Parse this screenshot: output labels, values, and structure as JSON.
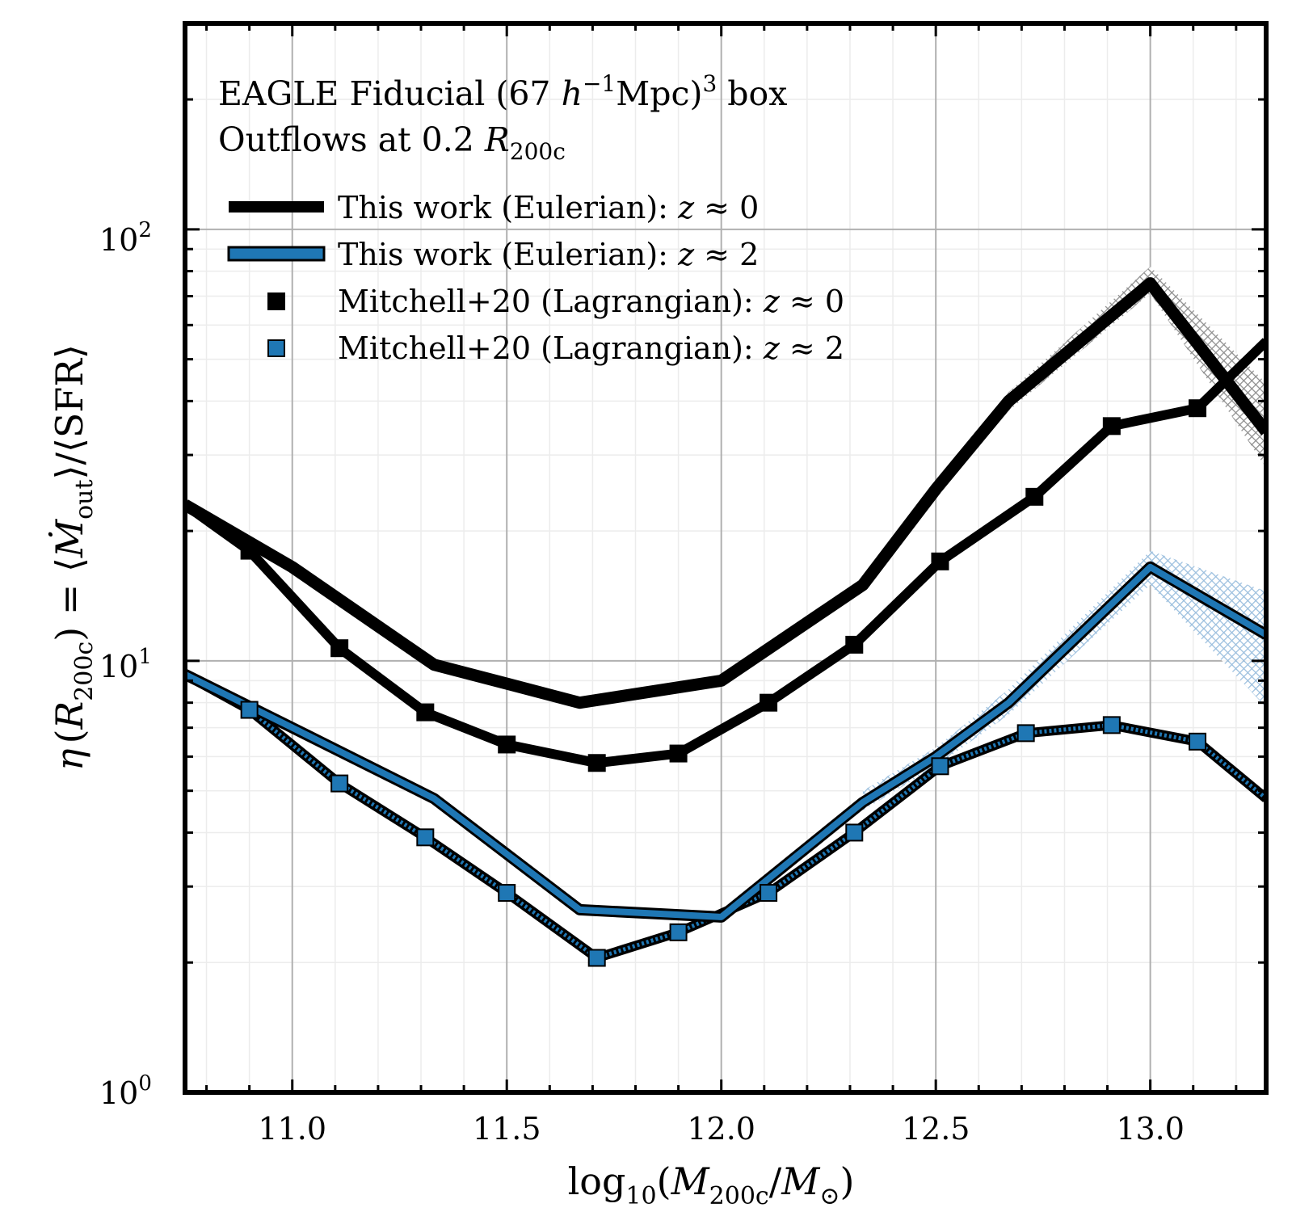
{
  "chart_data": {
    "type": "line",
    "yscale": "log",
    "xlim": [
      10.75,
      13.27
    ],
    "ylim": [
      1,
      300
    ],
    "grid": true,
    "xlabel": {
      "pre": "log",
      "sub1": "10",
      "paren_open": "(",
      "M1": "M",
      "sub2": "200c",
      "slash": "/",
      "M2": "M",
      "sub3": "⊙",
      "paren_close": ")"
    },
    "ylabel": {
      "eta": "η",
      "paren_open": "(",
      "R": "R",
      "sub": "200c",
      "mid": ") = ⟨",
      "Mdot": "Ṁ",
      "sub2": "out",
      "tail": "⟩/⟨SFR⟩"
    },
    "xticks": [
      "11.0",
      "11.5",
      "12.0",
      "12.5",
      "13.0"
    ],
    "yticks": [
      {
        "base": "10",
        "exp": "0"
      },
      {
        "base": "10",
        "exp": "1"
      },
      {
        "base": "10",
        "exp": "2"
      }
    ],
    "annotation": {
      "line1_a": "EAGLE Fiducial (67 ",
      "line1_h": "h",
      "line1_exp": "−1",
      "line1_b": "Mpc)",
      "line1_cube": "3",
      "line1_c": " box",
      "line2_a": "Outflows at 0.2 ",
      "line2_R": "R",
      "line2_sub": "200c"
    },
    "legend": [
      {
        "label": "This work (Eulerian): ",
        "z": "z",
        "rel": " ≈ 0",
        "style": "thick-black-line"
      },
      {
        "label": "This work (Eulerian): ",
        "z": "z",
        "rel": " ≈ 2",
        "style": "blue-line"
      },
      {
        "label": "Mitchell+20 (Lagrangian): ",
        "z": "z",
        "rel": " ≈ 0",
        "style": "black-square"
      },
      {
        "label": "Mitchell+20 (Lagrangian): ",
        "z": "z",
        "rel": " ≈ 2",
        "style": "blue-square"
      }
    ],
    "series": [
      {
        "name": "This work (Eulerian): z≈0",
        "color": "#000000",
        "x": [
          10.75,
          11.0,
          11.33,
          11.67,
          12.0,
          12.33,
          12.5,
          12.67,
          13.0,
          13.27
        ],
        "y": [
          23.0,
          16.5,
          9.8,
          8.0,
          9.0,
          15.0,
          25.0,
          40.0,
          75.0,
          34.0
        ],
        "band": {
          "x": [
            12.5,
            12.67,
            13.0,
            13.27
          ],
          "lower": [
            24.0,
            38.0,
            71.0,
            28.0
          ],
          "upper": [
            26.0,
            42.0,
            82.0,
            44.0
          ],
          "color": "#808080"
        }
      },
      {
        "name": "This work (Eulerian): z≈2",
        "color": "#1f77b4",
        "x": [
          10.75,
          11.0,
          11.33,
          11.67,
          12.0,
          12.33,
          12.5,
          12.67,
          13.0,
          13.27
        ],
        "y": [
          9.3,
          7.0,
          4.8,
          2.65,
          2.55,
          4.7,
          6.0,
          8.0,
          16.5,
          11.5
        ],
        "band": {
          "x": [
            12.33,
            12.5,
            12.67,
            13.0,
            13.27
          ],
          "lower": [
            4.5,
            5.7,
            7.5,
            15.0,
            7.8
          ],
          "upper": [
            5.0,
            6.3,
            8.6,
            18.0,
            14.5
          ],
          "color": "#1f77b4"
        }
      },
      {
        "name": "Mitchell+20 (Lagrangian): z≈0",
        "color": "#000000",
        "marker": "square",
        "x": [
          10.75,
          10.9,
          11.11,
          11.31,
          11.5,
          11.71,
          11.9,
          12.11,
          12.31,
          12.51,
          12.73,
          12.91,
          13.11,
          13.27
        ],
        "y": [
          23.0,
          18.0,
          10.7,
          7.6,
          6.4,
          5.8,
          6.1,
          8.0,
          10.9,
          17.0,
          24.0,
          35.0,
          38.5,
          55.0
        ]
      },
      {
        "name": "Mitchell+20 (Lagrangian): z≈2",
        "color": "#1f77b4",
        "marker": "square",
        "x": [
          10.75,
          10.9,
          11.11,
          11.31,
          11.5,
          11.71,
          11.9,
          12.11,
          12.31,
          12.51,
          12.71,
          12.91,
          13.11,
          13.27
        ],
        "y": [
          9.3,
          7.7,
          5.2,
          3.9,
          2.9,
          2.05,
          2.35,
          2.9,
          4.0,
          5.7,
          6.8,
          7.1,
          6.5,
          4.8
        ]
      }
    ]
  }
}
